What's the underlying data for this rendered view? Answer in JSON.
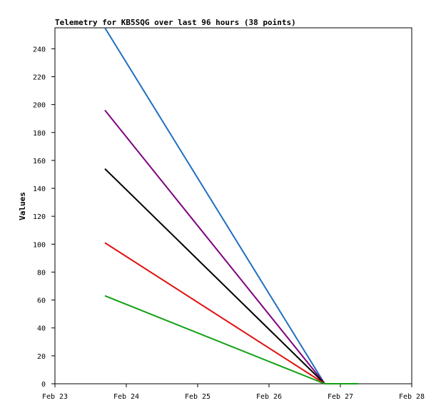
{
  "chart_data": {
    "type": "line",
    "title": "Telemetry for KB5SQG over last 96 hours (38 points)",
    "xlabel": "",
    "ylabel": "Values",
    "x_ticks": [
      "Feb 23",
      "Feb 24",
      "Feb 25",
      "Feb 26",
      "Feb 27",
      "Feb 28"
    ],
    "y_ticks": [
      "0",
      "20",
      "40",
      "60",
      "80",
      "100",
      "120",
      "140",
      "160",
      "180",
      "200",
      "220",
      "240"
    ],
    "ylim": [
      0,
      255
    ],
    "xlim_days": [
      23,
      28
    ],
    "grid": false,
    "x": [
      23.7,
      26.78,
      27.0,
      27.25
    ],
    "series": [
      {
        "color": "#1f6fbf",
        "values": [
          255,
          0,
          0,
          0
        ]
      },
      {
        "color": "#7f007f",
        "values": [
          196,
          0,
          0,
          0
        ]
      },
      {
        "color": "#000000",
        "values": [
          154,
          0,
          0,
          0
        ]
      },
      {
        "color": "#e01010",
        "values": [
          101,
          0,
          0,
          0
        ]
      },
      {
        "color": "#10a010",
        "values": [
          63,
          0,
          0,
          0
        ]
      }
    ]
  }
}
